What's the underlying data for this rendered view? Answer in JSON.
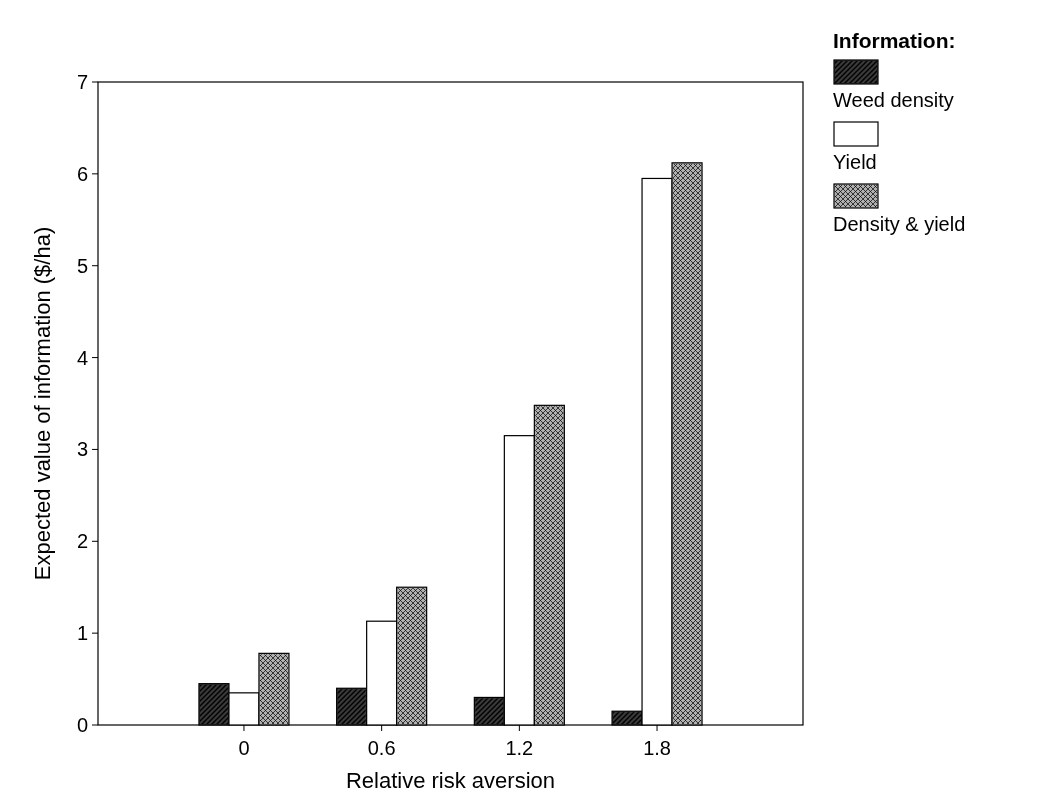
{
  "chart_data": {
    "type": "bar",
    "xlabel": "Relative risk aversion",
    "ylabel": "Expected value of information ($/ha)",
    "legend_title": "Information:",
    "legend": "top right",
    "grid": false,
    "categories": [
      "0",
      "0.6",
      "1.2",
      "1.8"
    ],
    "ylim": [
      0,
      7
    ],
    "yticks": [
      0,
      1,
      2,
      3,
      4,
      5,
      6,
      7
    ],
    "series": [
      {
        "name": "Weed density",
        "color": "#3a3a3a",
        "values": [
          0.45,
          0.4,
          0.3,
          0.15
        ]
      },
      {
        "name": "Yield",
        "color": "#ffffff",
        "values": [
          0.35,
          1.13,
          3.15,
          5.95
        ]
      },
      {
        "name": "Density & yield",
        "color": "#b0b0b0",
        "values": [
          0.78,
          1.5,
          3.48,
          6.12
        ]
      }
    ]
  }
}
